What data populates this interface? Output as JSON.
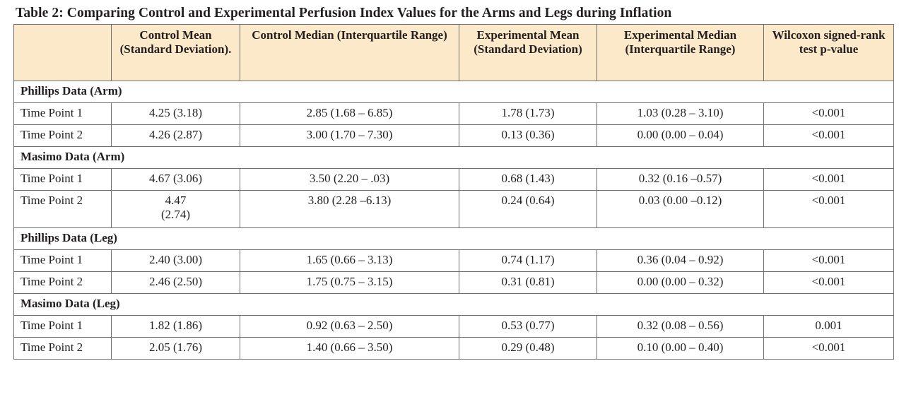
{
  "caption": "Table 2: Comparing Control and Experimental Perfusion Index Values for the Arms and Legs during Inflation",
  "headers": [
    "",
    "Control Mean (Standard Deviation).",
    "Control Median (Interquartile Range)",
    "Experimental Mean (Standard Deviation)",
    "Experimental Median (Interquartile Range)",
    "Wilcoxon signed-rank test p-value"
  ],
  "sections": [
    {
      "title": "Phillips Data (Arm)",
      "rows": [
        {
          "label": "Time Point 1",
          "control_mean": "4.25 (3.18)",
          "control_median": "2.85 (1.68 – 6.85)",
          "exp_mean": "1.78 (1.73)",
          "exp_median": "1.03 (0.28 – 3.10)",
          "p": "<0.001"
        },
        {
          "label": "Time Point 2",
          "control_mean": "4.26 (2.87)",
          "control_median": "3.00 (1.70 – 7.30)",
          "exp_mean": "0.13 (0.36)",
          "exp_median": "0.00 (0.00 – 0.04)",
          "p": "<0.001"
        }
      ]
    },
    {
      "title": "Masimo Data (Arm)",
      "rows": [
        {
          "label": "Time Point 1",
          "control_mean": "4.67 (3.06)",
          "control_median": "3.50 (2.20 – .03)",
          "exp_mean": "0.68 (1.43)",
          "exp_median": "0.32 (0.16 –0.57)",
          "p": "<0.001"
        },
        {
          "label": "Time Point 2",
          "control_mean_a": "4.47",
          "control_mean_b": "(2.74)",
          "control_median": "3.80 (2.28 –6.13)",
          "exp_mean": "0.24 (0.64)",
          "exp_median": "0.03 (0.00 –0.12)",
          "p": "<0.001"
        }
      ]
    },
    {
      "title": "Phillips Data (Leg)",
      "rows": [
        {
          "label": "Time Point 1",
          "control_mean": "2.40 (3.00)",
          "control_median": "1.65 (0.66 – 3.13)",
          "exp_mean": "0.74 (1.17)",
          "exp_median": "0.36 (0.04 – 0.92)",
          "p": "<0.001"
        },
        {
          "label": "Time Point 2",
          "control_mean": "2.46 (2.50)",
          "control_median": "1.75 (0.75 – 3.15)",
          "exp_mean": "0.31 (0.81)",
          "exp_median": "0.00 (0.00 – 0.32)",
          "p": "<0.001"
        }
      ]
    },
    {
      "title": "Masimo Data (Leg)",
      "rows": [
        {
          "label": "Time Point 1",
          "control_mean": "1.82 (1.86)",
          "control_median": "0.92 (0.63 – 2.50)",
          "exp_mean": "0.53 (0.77)",
          "exp_median": "0.32 (0.08 – 0.56)",
          "p": "0.001"
        },
        {
          "label": "Time Point 2",
          "control_mean": "2.05 (1.76)",
          "control_median": "1.40 (0.66 – 3.50)",
          "exp_mean": "0.29 (0.48)",
          "exp_median": "0.10 (0.00 – 0.40)",
          "p": "<0.001"
        }
      ]
    }
  ]
}
